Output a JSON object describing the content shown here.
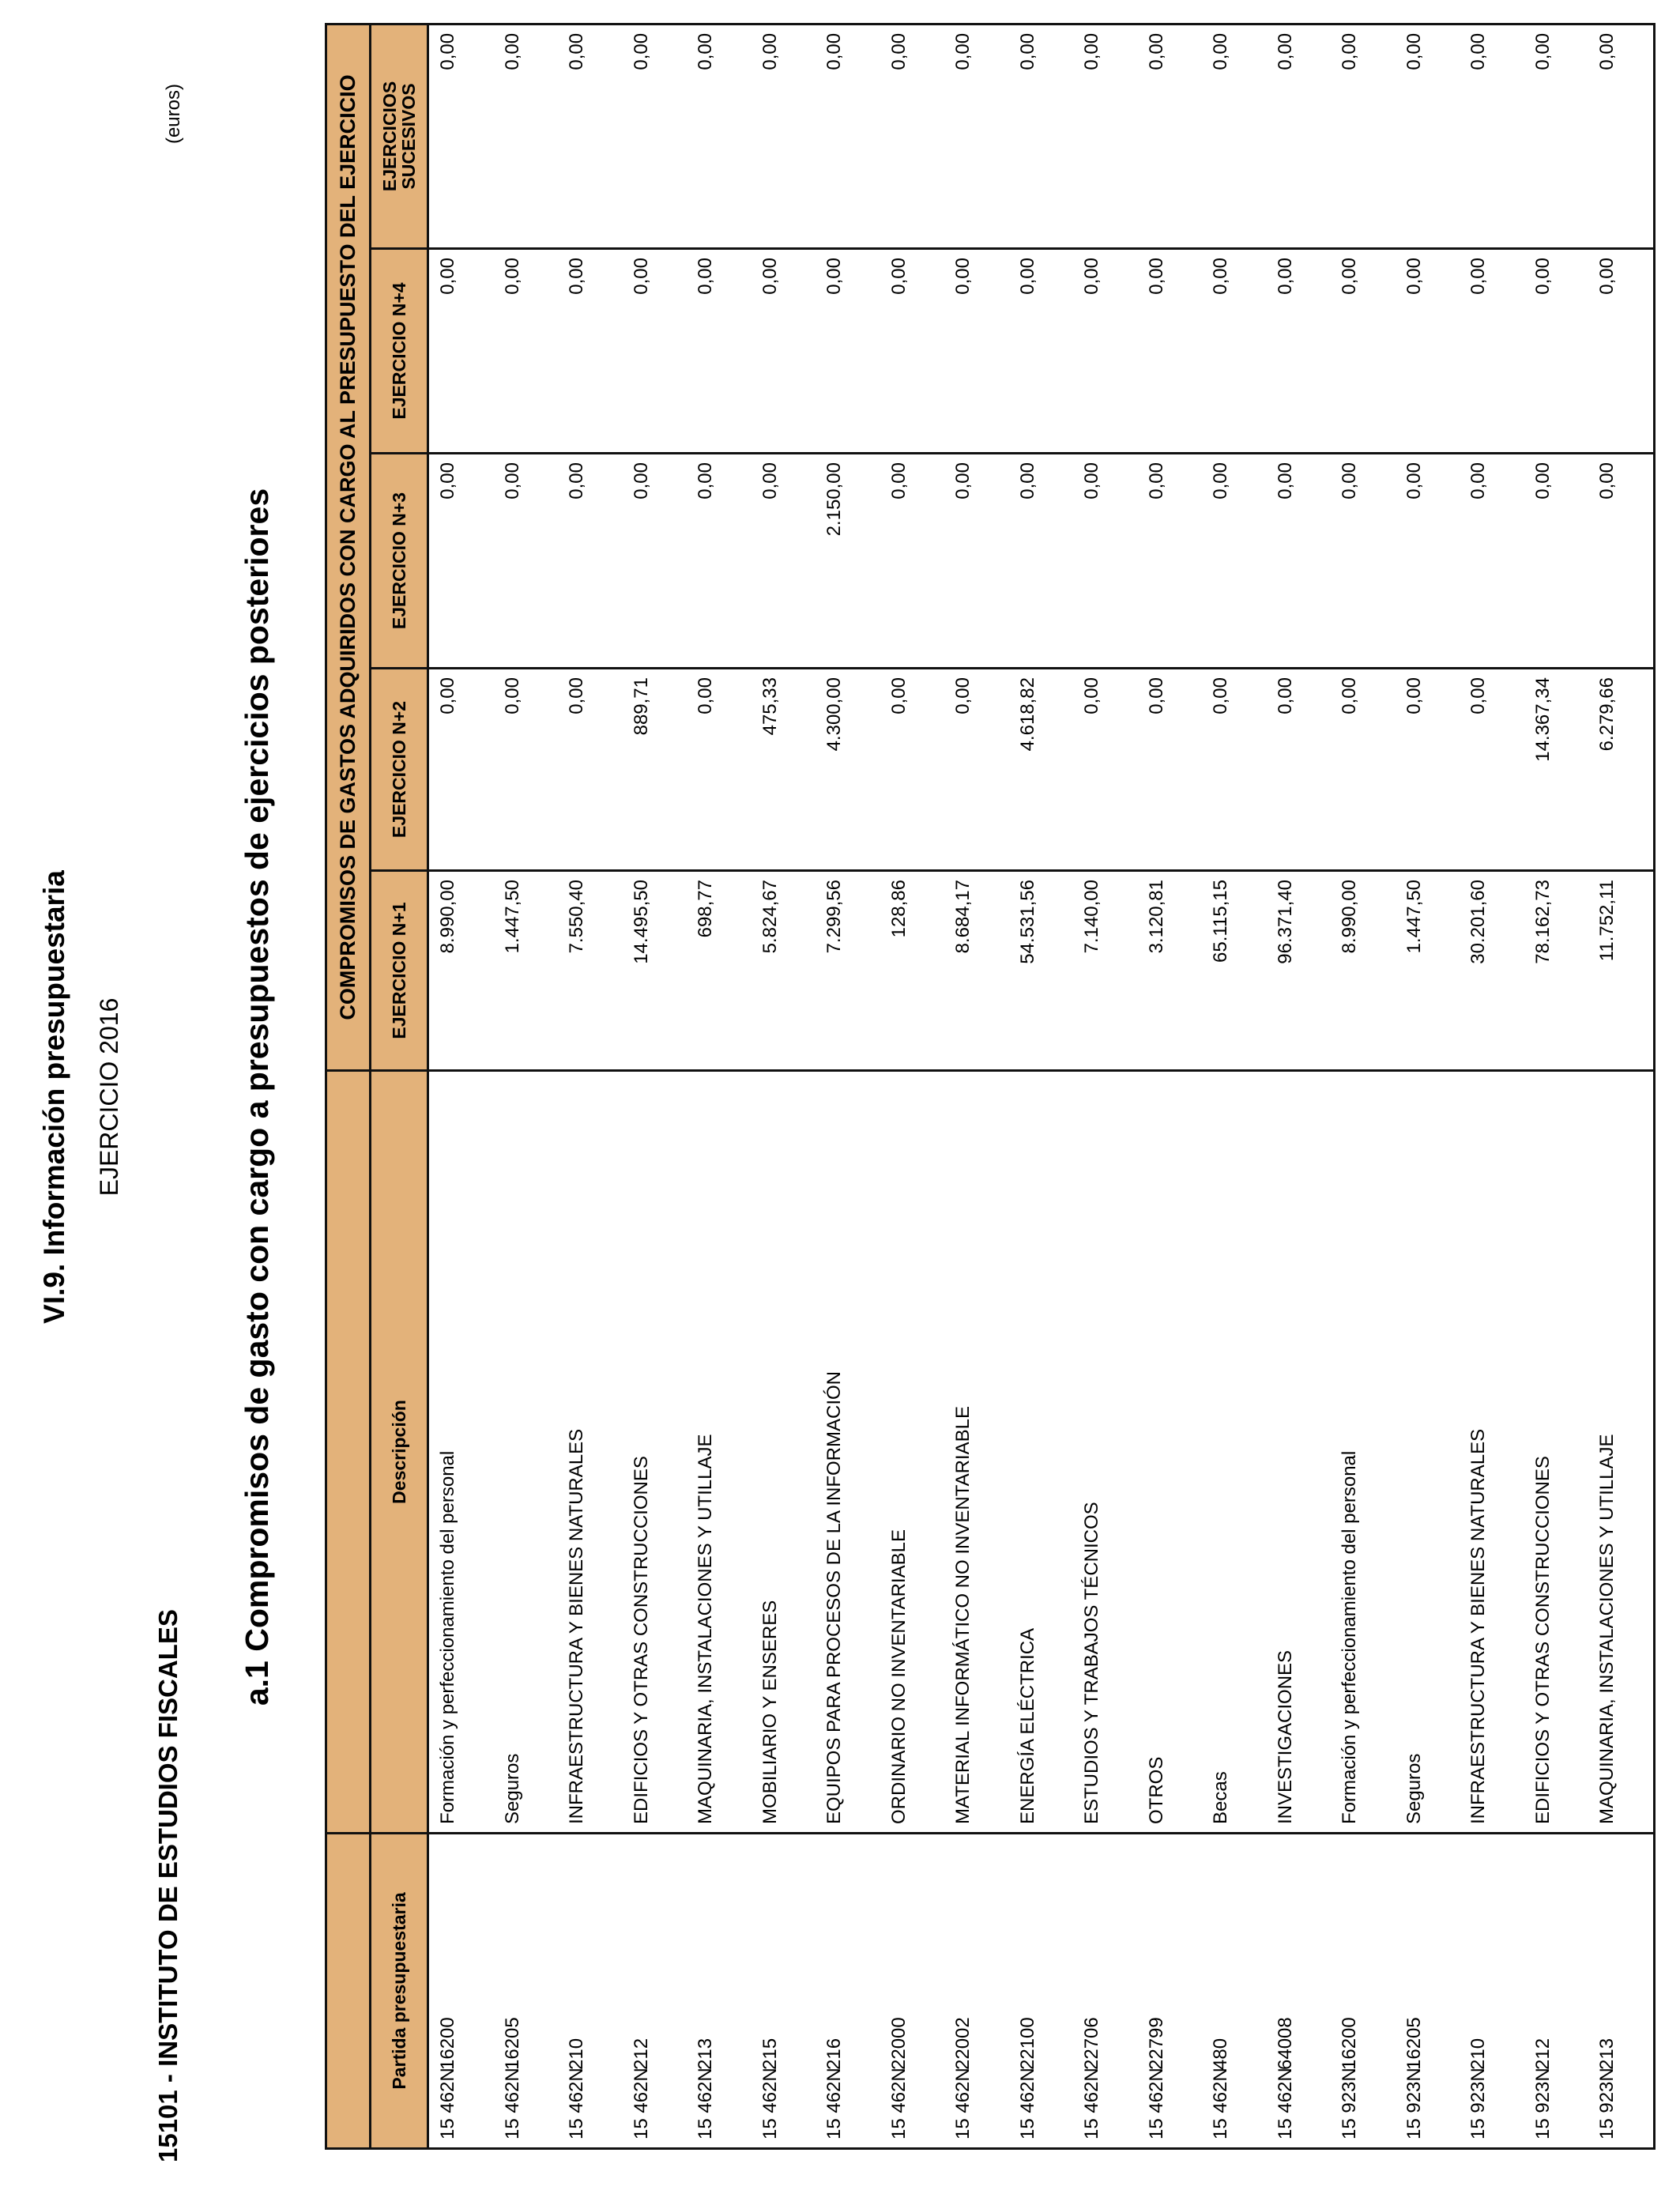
{
  "header": {
    "title": "VI.9. Información presupuestaria",
    "year": "EJERCICIO 2016",
    "entity": "15101 - INSTITUTO DE ESTUDIOS FISCALES",
    "subtitle": "a.1 Compromisos de gasto con cargo a presupuestos de ejercicios posteriores",
    "units": "(euros)"
  },
  "colors": {
    "header_bg": "#E3B27A"
  },
  "table": {
    "group_header": "COMPROMISOS DE GASTOS ADQUIRIDOS CON CARGO AL PRESUPUESTO DEL EJERCICIO",
    "columns": [
      "Partida presupuestaria",
      "Descripción",
      "EJERCICIO N+1",
      "EJERCICIO N+2",
      "EJERCICIO N+3",
      "EJERCICIO N+4",
      "EJERCICIOS SUCESIVOS"
    ],
    "rows": [
      {
        "prog": "15 462N",
        "concept": "16200",
        "desc": "Formación y perfeccionamiento del personal",
        "n1": "8.990,00",
        "n2": "0,00",
        "n3": "0,00",
        "n4": "0,00",
        "suc": "0,00"
      },
      {
        "prog": "15 462N",
        "concept": "16205",
        "desc": "Seguros",
        "n1": "1.447,50",
        "n2": "0,00",
        "n3": "0,00",
        "n4": "0,00",
        "suc": "0,00"
      },
      {
        "prog": "15 462N",
        "concept": "210",
        "desc": "INFRAESTRUCTURA Y BIENES NATURALES",
        "n1": "7.550,40",
        "n2": "0,00",
        "n3": "0,00",
        "n4": "0,00",
        "suc": "0,00"
      },
      {
        "prog": "15 462N",
        "concept": "212",
        "desc": "EDIFICIOS Y OTRAS CONSTRUCCIONES",
        "n1": "14.495,50",
        "n2": "889,71",
        "n3": "0,00",
        "n4": "0,00",
        "suc": "0,00"
      },
      {
        "prog": "15 462N",
        "concept": "213",
        "desc": "MAQUINARIA, INSTALACIONES Y UTILLAJE",
        "n1": "698,77",
        "n2": "0,00",
        "n3": "0,00",
        "n4": "0,00",
        "suc": "0,00"
      },
      {
        "prog": "15 462N",
        "concept": "215",
        "desc": "MOBILIARIO Y ENSERES",
        "n1": "5.824,67",
        "n2": "475,33",
        "n3": "0,00",
        "n4": "0,00",
        "suc": "0,00"
      },
      {
        "prog": "15 462N",
        "concept": "216",
        "desc": "EQUIPOS PARA PROCESOS DE LA INFORMACIÓN",
        "n1": "7.299,56",
        "n2": "4.300,00",
        "n3": "2.150,00",
        "n4": "0,00",
        "suc": "0,00"
      },
      {
        "prog": "15 462N",
        "concept": "22000",
        "desc": "ORDINARIO NO INVENTARIABLE",
        "n1": "128,86",
        "n2": "0,00",
        "n3": "0,00",
        "n4": "0,00",
        "suc": "0,00"
      },
      {
        "prog": "15 462N",
        "concept": "22002",
        "desc": "MATERIAL INFORMÁTICO NO INVENTARIABLE",
        "n1": "8.684,17",
        "n2": "0,00",
        "n3": "0,00",
        "n4": "0,00",
        "suc": "0,00"
      },
      {
        "prog": "15 462N",
        "concept": "22100",
        "desc": "ENERGÍA ELÉCTRICA",
        "n1": "54.531,56",
        "n2": "4.618,82",
        "n3": "0,00",
        "n4": "0,00",
        "suc": "0,00"
      },
      {
        "prog": "15 462N",
        "concept": "22706",
        "desc": "ESTUDIOS Y TRABAJOS TÉCNICOS",
        "n1": "7.140,00",
        "n2": "0,00",
        "n3": "0,00",
        "n4": "0,00",
        "suc": "0,00"
      },
      {
        "prog": "15 462N",
        "concept": "22799",
        "desc": "OTROS",
        "n1": "3.120,81",
        "n2": "0,00",
        "n3": "0,00",
        "n4": "0,00",
        "suc": "0,00"
      },
      {
        "prog": "15 462N",
        "concept": "480",
        "desc": "Becas",
        "n1": "65.115,15",
        "n2": "0,00",
        "n3": "0,00",
        "n4": "0,00",
        "suc": "0,00"
      },
      {
        "prog": "15 462N",
        "concept": "64008",
        "desc": "INVESTIGACIONES",
        "n1": "96.371,40",
        "n2": "0,00",
        "n3": "0,00",
        "n4": "0,00",
        "suc": "0,00"
      },
      {
        "prog": "15 923N",
        "concept": "16200",
        "desc": "Formación y perfeccionamiento del personal",
        "n1": "8.990,00",
        "n2": "0,00",
        "n3": "0,00",
        "n4": "0,00",
        "suc": "0,00"
      },
      {
        "prog": "15 923N",
        "concept": "16205",
        "desc": "Seguros",
        "n1": "1.447,50",
        "n2": "0,00",
        "n3": "0,00",
        "n4": "0,00",
        "suc": "0,00"
      },
      {
        "prog": "15 923N",
        "concept": "210",
        "desc": "INFRAESTRUCTURA Y BIENES NATURALES",
        "n1": "30.201,60",
        "n2": "0,00",
        "n3": "0,00",
        "n4": "0,00",
        "suc": "0,00"
      },
      {
        "prog": "15 923N",
        "concept": "212",
        "desc": "EDIFICIOS Y OTRAS CONSTRUCCIONES",
        "n1": "78.162,73",
        "n2": "14.367,34",
        "n3": "0,00",
        "n4": "0,00",
        "suc": "0,00"
      },
      {
        "prog": "15 923N",
        "concept": "213",
        "desc": "MAQUINARIA, INSTALACIONES Y UTILLAJE",
        "n1": "11.752,11",
        "n2": "6.279,66",
        "n3": "0,00",
        "n4": "0,00",
        "suc": "0,00"
      }
    ]
  }
}
